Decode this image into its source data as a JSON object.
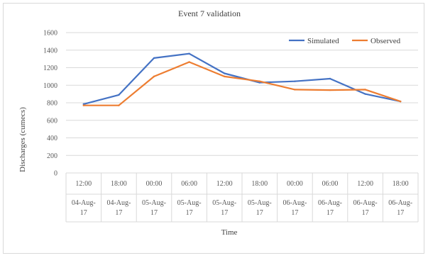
{
  "chart_data": {
    "type": "line",
    "title": "Event 7 validation",
    "xlabel": "Time",
    "ylabel": "Discharges  (cumecs)",
    "ylim": [
      0,
      1600
    ],
    "yticks": [
      0,
      200,
      400,
      600,
      800,
      1000,
      1200,
      1400,
      1600
    ],
    "grid": true,
    "legend_position": "top-right",
    "categories": [
      {
        "time": "12:00",
        "date_line1": "04-Aug-",
        "date_line2": "17"
      },
      {
        "time": "18:00",
        "date_line1": "04-Aug-",
        "date_line2": "17"
      },
      {
        "time": "00:00",
        "date_line1": "05-Aug-",
        "date_line2": "17"
      },
      {
        "time": "06:00",
        "date_line1": "05-Aug-",
        "date_line2": "17"
      },
      {
        "time": "12:00",
        "date_line1": "05-Aug-",
        "date_line2": "17"
      },
      {
        "time": "18:00",
        "date_line1": "05-Aug-",
        "date_line2": "17"
      },
      {
        "time": "00:00",
        "date_line1": "06-Aug-",
        "date_line2": "17"
      },
      {
        "time": "06:00",
        "date_line1": "06-Aug-",
        "date_line2": "17"
      },
      {
        "time": "12:00",
        "date_line1": "06-Aug-",
        "date_line2": "17"
      },
      {
        "time": "18:00",
        "date_line1": "06-Aug-",
        "date_line2": "17"
      }
    ],
    "series": [
      {
        "name": "Simulated",
        "color": "#4472c4",
        "values": [
          785,
          890,
          1310,
          1360,
          1135,
          1030,
          1045,
          1075,
          900,
          815
        ]
      },
      {
        "name": "Observed",
        "color": "#ed7d31",
        "values": [
          770,
          770,
          1100,
          1265,
          1100,
          1045,
          950,
          945,
          950,
          815
        ]
      }
    ]
  }
}
